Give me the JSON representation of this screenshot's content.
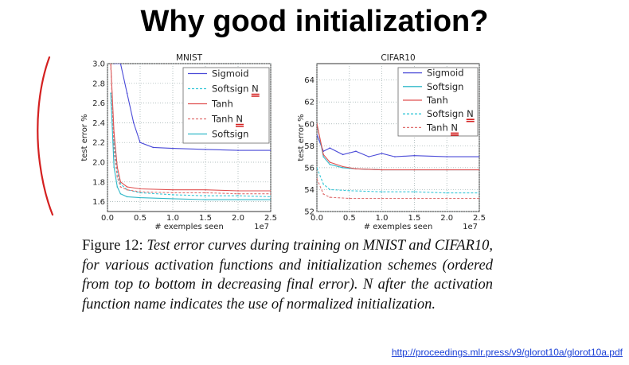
{
  "slide": {
    "title": "Why good initialization?",
    "source_link": "http://proceedings.mlr.press/v9/glorot10a/glorot10a.pdf"
  },
  "caption": {
    "label": "Figure 12:",
    "text": "Test error curves during training on MNIST and CIFAR10, for various activation functions and initialization schemes (ordered from top to bottom in decreasing final error). N after the activation function name indicates the use of normalized initialization."
  },
  "colors": {
    "sigmoid": "#4a4ad8",
    "softsign_n": "#38c8d8",
    "tanh": "#e05050",
    "tanh_n": "#e07070",
    "softsign": "#30b8c8",
    "annotation": "#d42020"
  },
  "chart_data": [
    {
      "type": "line",
      "title": "MNIST",
      "xlabel": "# exemples seen",
      "ylabel": "test error %",
      "x_multiplier": "1e7",
      "xlim": [
        0,
        2.5
      ],
      "ylim": [
        1.5,
        3.0
      ],
      "xticks": [
        "0.0",
        "0.5",
        "1.0",
        "1.5",
        "2.0",
        "2.5"
      ],
      "yticks": [
        "1.6",
        "1.8",
        "2.0",
        "2.2",
        "2.4",
        "2.6",
        "2.8",
        "3.0"
      ],
      "grid": true,
      "legend_position": "top-right",
      "series": [
        {
          "name": "Sigmoid",
          "style": "solid",
          "x": [
            0.1,
            0.2,
            0.3,
            0.4,
            0.5,
            0.7,
            1.0,
            1.5,
            2.0,
            2.5
          ],
          "values": [
            3.0,
            3.0,
            2.7,
            2.4,
            2.2,
            2.15,
            2.14,
            2.13,
            2.12,
            2.12
          ]
        },
        {
          "name": "Softsign N",
          "style": "dashed",
          "x": [
            0.05,
            0.1,
            0.15,
            0.2,
            0.3,
            0.5,
            1.0,
            1.5,
            2.0,
            2.5
          ],
          "values": [
            3.0,
            2.2,
            1.9,
            1.78,
            1.72,
            1.69,
            1.67,
            1.66,
            1.66,
            1.65
          ]
        },
        {
          "name": "Tanh",
          "style": "solid",
          "x": [
            0.05,
            0.1,
            0.15,
            0.2,
            0.3,
            0.5,
            1.0,
            1.5,
            2.0,
            2.5
          ],
          "values": [
            3.0,
            2.3,
            1.95,
            1.8,
            1.75,
            1.73,
            1.72,
            1.72,
            1.71,
            1.71
          ]
        },
        {
          "name": "Tanh N",
          "style": "dashed",
          "x": [
            0.05,
            0.1,
            0.15,
            0.2,
            0.3,
            0.5,
            1.0,
            1.5,
            2.0,
            2.5
          ],
          "values": [
            3.0,
            2.1,
            1.85,
            1.75,
            1.72,
            1.7,
            1.69,
            1.69,
            1.68,
            1.68
          ]
        },
        {
          "name": "Softsign",
          "style": "solid",
          "x": [
            0.05,
            0.1,
            0.15,
            0.2,
            0.3,
            0.5,
            1.0,
            1.5,
            2.0,
            2.5
          ],
          "values": [
            2.7,
            1.95,
            1.75,
            1.68,
            1.65,
            1.64,
            1.63,
            1.62,
            1.62,
            1.62
          ]
        }
      ]
    },
    {
      "type": "line",
      "title": "CIFAR10",
      "xlabel": "# exemples seen",
      "ylabel": "test error %",
      "x_multiplier": "1e7",
      "xlim": [
        0,
        2.5
      ],
      "ylim": [
        52,
        65.5
      ],
      "xticks": [
        "0.0",
        "0.5",
        "1.0",
        "1.5",
        "2.0",
        "2.5"
      ],
      "yticks": [
        "52",
        "54",
        "56",
        "58",
        "60",
        "62",
        "64"
      ],
      "grid": true,
      "legend_position": "top-right",
      "series": [
        {
          "name": "Sigmoid",
          "style": "solid",
          "x": [
            0.0,
            0.1,
            0.2,
            0.4,
            0.6,
            0.8,
            1.0,
            1.2,
            1.5,
            2.0,
            2.5
          ],
          "values": [
            59,
            57.5,
            57.8,
            57.2,
            57.5,
            57.0,
            57.3,
            57.0,
            57.1,
            57.0,
            57.0
          ]
        },
        {
          "name": "Softsign",
          "style": "solid",
          "x": [
            0.0,
            0.1,
            0.2,
            0.4,
            0.6,
            1.0,
            1.5,
            2.0,
            2.5
          ],
          "values": [
            60,
            57.0,
            56.3,
            56.0,
            55.9,
            55.8,
            55.8,
            55.8,
            55.8
          ]
        },
        {
          "name": "Tanh",
          "style": "solid",
          "x": [
            0.0,
            0.1,
            0.2,
            0.4,
            0.6,
            1.0,
            1.5,
            2.0,
            2.5
          ],
          "values": [
            60,
            57.2,
            56.5,
            56.1,
            55.9,
            55.8,
            55.8,
            55.8,
            55.8
          ]
        },
        {
          "name": "Softsign N",
          "style": "dashed",
          "x": [
            0.0,
            0.1,
            0.2,
            0.5,
            1.0,
            1.5,
            2.0,
            2.5
          ],
          "values": [
            56,
            54.5,
            54.0,
            53.9,
            53.8,
            53.8,
            53.7,
            53.7
          ]
        },
        {
          "name": "Tanh N",
          "style": "dashed",
          "x": [
            0.0,
            0.1,
            0.2,
            0.5,
            1.0,
            1.5,
            2.0,
            2.5
          ],
          "values": [
            55,
            53.6,
            53.3,
            53.2,
            53.2,
            53.2,
            53.2,
            53.2
          ]
        }
      ]
    }
  ]
}
